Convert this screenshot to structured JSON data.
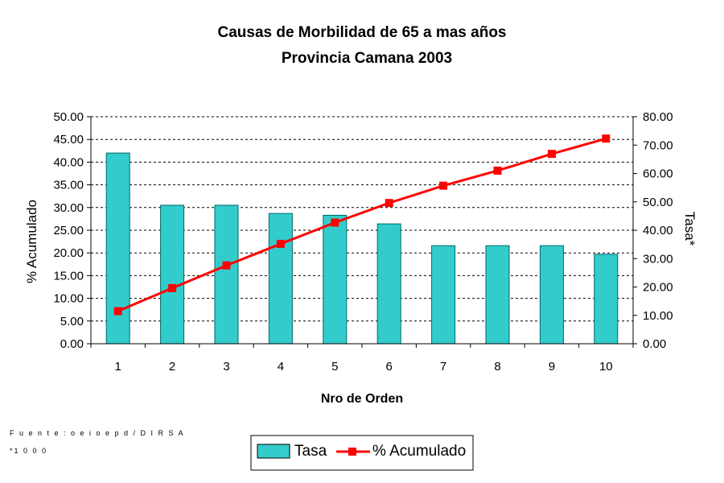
{
  "footnotes": {
    "source": "F u e n t e : o e i o e p d / D I R S A",
    "note": "*1 0 0 0"
  },
  "chart_data": {
    "type": "bar",
    "title": "Causas de Morbilidad de 65 a mas años",
    "subtitle": "Provincia Camana 2003",
    "xlabel": "Nro de Orden",
    "ylabel_left": "% Acumulado",
    "ylabel_right": "Tasa*",
    "categories": [
      "1",
      "2",
      "3",
      "4",
      "5",
      "6",
      "7",
      "8",
      "9",
      "10"
    ],
    "y_left": {
      "min": 0,
      "max": 50,
      "step": 5,
      "ticks": [
        "0.00",
        "5.00",
        "10.00",
        "15.00",
        "20.00",
        "25.00",
        "30.00",
        "35.00",
        "40.00",
        "45.00",
        "50.00"
      ]
    },
    "y_right": {
      "min": 0,
      "max": 80,
      "step": 10,
      "ticks": [
        "0.00",
        "10.00",
        "20.00",
        "30.00",
        "40.00",
        "50.00",
        "60.00",
        "70.00",
        "80.00"
      ]
    },
    "grid": true,
    "legend_position": "bottom",
    "series": [
      {
        "name": "Tasa",
        "type": "bar",
        "axis": "left",
        "color": "#33CCCC",
        "values": [
          42.0,
          30.5,
          30.5,
          28.7,
          28.3,
          26.4,
          21.6,
          21.6,
          21.6,
          19.7
        ]
      },
      {
        "name": "% Acumulado",
        "type": "line",
        "axis": "right",
        "color": "#FF0000",
        "values": [
          11.5,
          19.6,
          27.6,
          35.2,
          42.7,
          49.6,
          55.7,
          61.0,
          66.9,
          72.3
        ]
      }
    ]
  }
}
